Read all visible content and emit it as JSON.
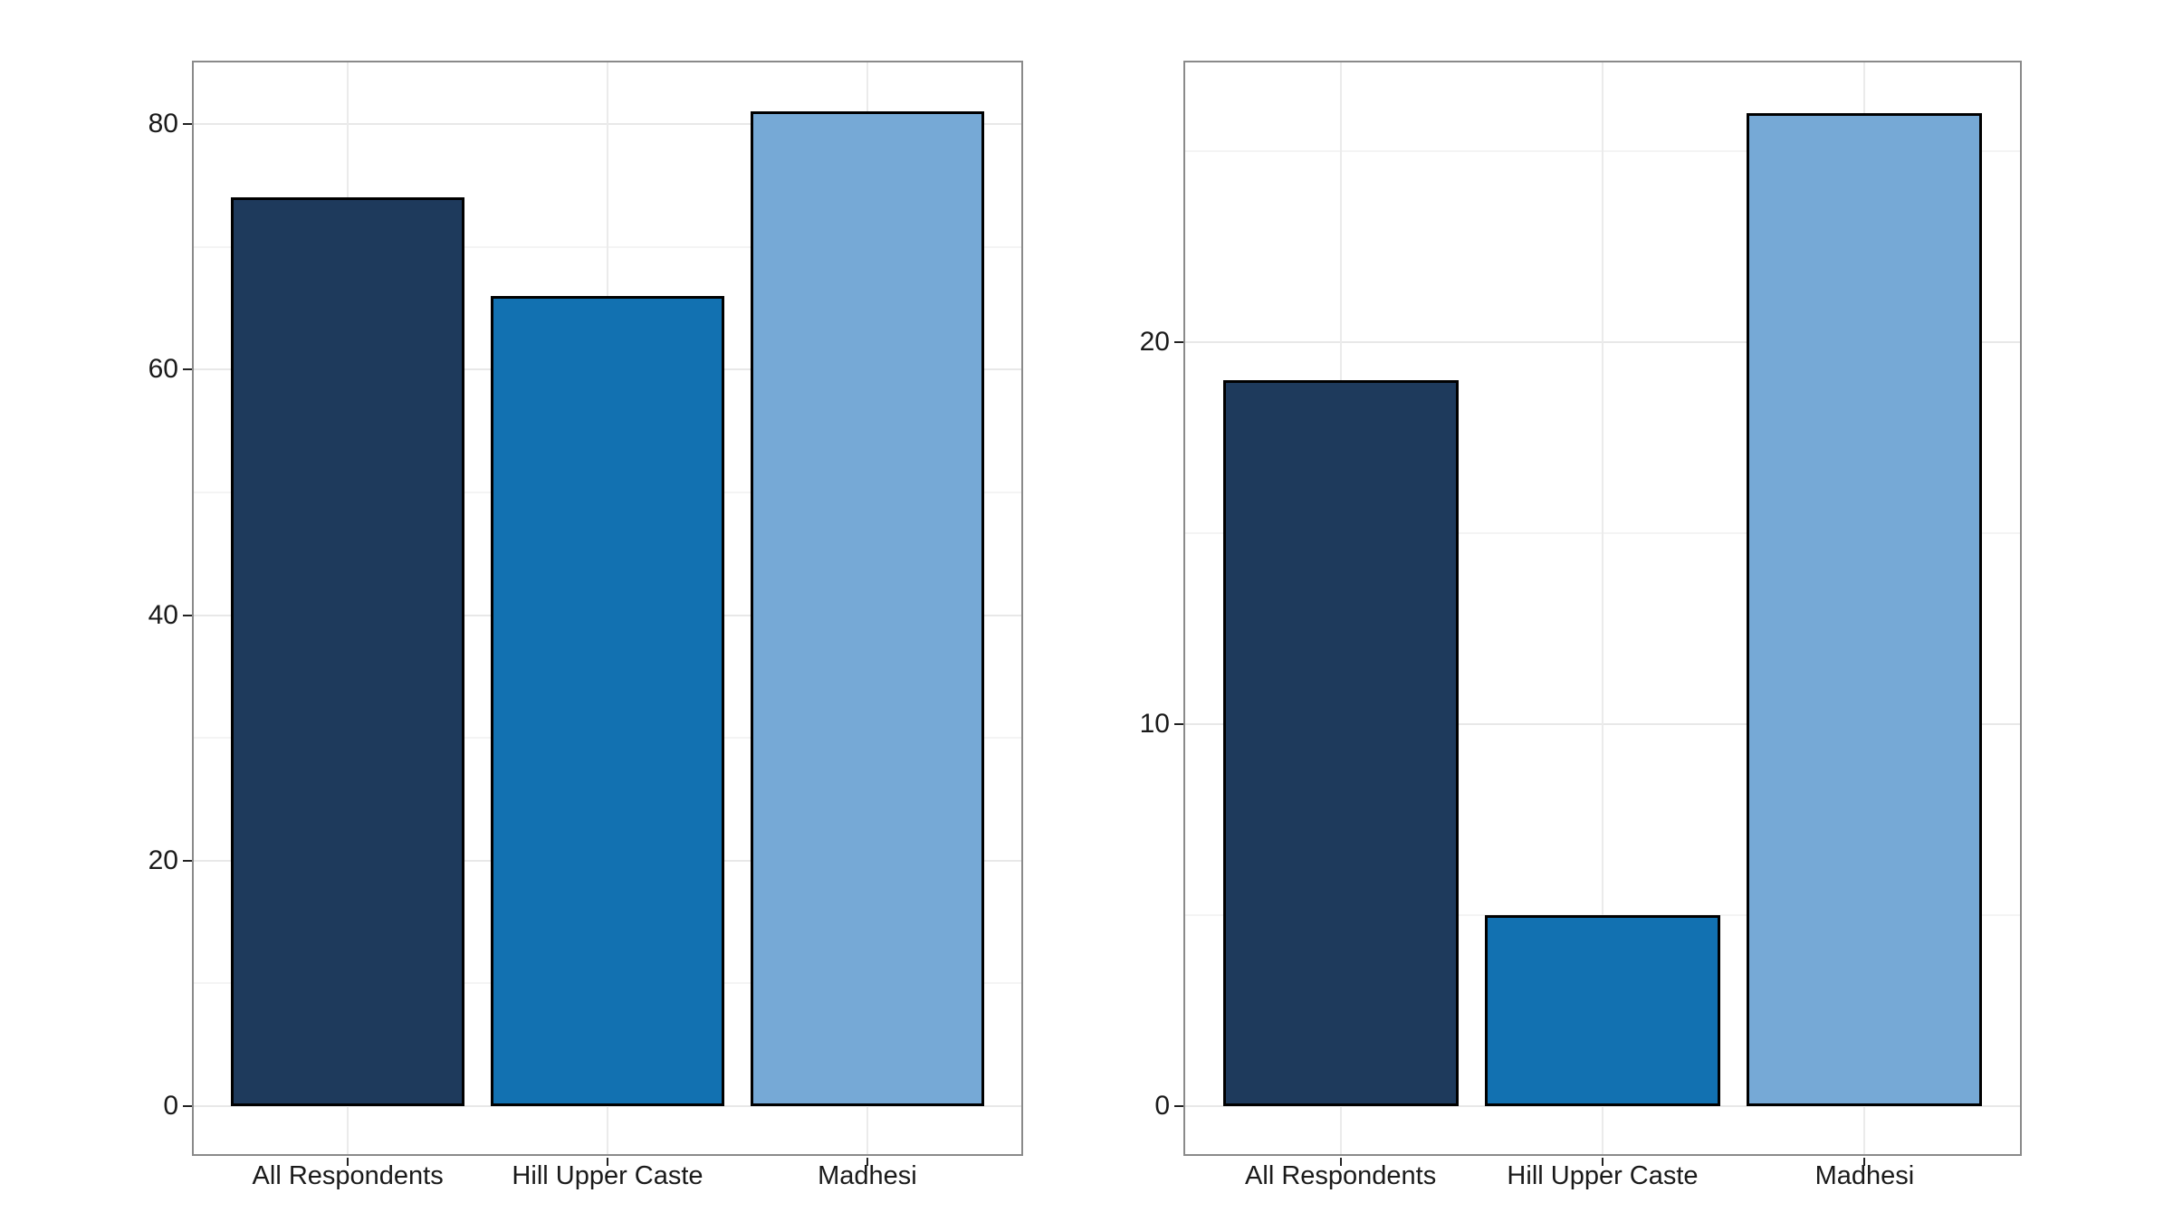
{
  "figure": {
    "background": "#ffffff",
    "panel_border_color": "#8a8a8a",
    "gridline_major_color": "#e8e8e8",
    "gridline_minor_color": "#f4f4f4",
    "axis_text_color": "#1a1a1a"
  },
  "chart_data": [
    {
      "type": "bar",
      "title": "",
      "categories": [
        "All Respondents",
        "Hill Upper Caste",
        "Madhesi"
      ],
      "values": [
        74,
        66,
        81
      ],
      "bar_colors": [
        "#1e3a5c",
        "#1271b1",
        "#76a9d6"
      ],
      "bar_edge_color": "#000000",
      "xlabel": "",
      "ylabel": "",
      "ylim": [
        0,
        85
      ],
      "yticks": [
        0,
        20,
        40,
        60,
        80
      ],
      "yticks_minor": [
        10,
        30,
        50,
        70
      ],
      "grid": true,
      "legend": "none"
    },
    {
      "type": "bar",
      "title": "",
      "categories": [
        "All Respondents",
        "Hill Upper Caste",
        "Madhesi"
      ],
      "values": [
        19,
        5,
        26
      ],
      "bar_colors": [
        "#1e3a5c",
        "#1271b1",
        "#76a9d6"
      ],
      "bar_edge_color": "#000000",
      "xlabel": "",
      "ylabel": "",
      "ylim": [
        0,
        27.5
      ],
      "yticks": [
        0,
        10,
        20
      ],
      "yticks_minor": [
        5,
        15,
        25
      ],
      "grid": true,
      "legend": "none"
    }
  ]
}
